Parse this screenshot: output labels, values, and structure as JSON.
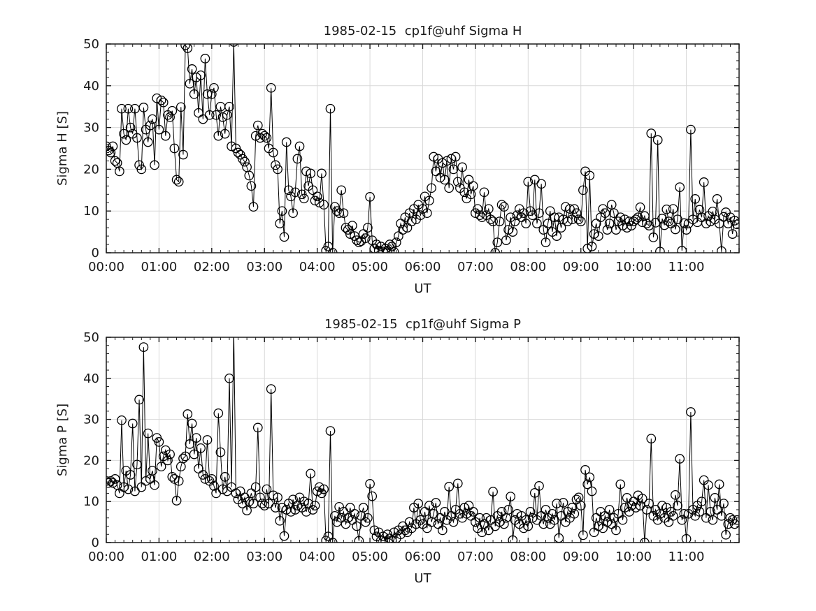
{
  "figure": {
    "background": "#ffffff",
    "text_color": "#1a1a1a",
    "axis_color": "#1a1a1a",
    "grid_color": "#d9d9d9",
    "line_color": "#000000",
    "marker_radius": 6.2,
    "tick_font_size": 18,
    "title_font_size": 18
  },
  "chart_data": [
    {
      "name": "sigma-h",
      "type": "line",
      "title": "1985-02-15  cp1f@uhf Sigma H",
      "xlabel": "UT",
      "ylabel": "Sigma H [S]",
      "ylim": [
        0,
        50
      ],
      "xlim_hours": [
        0,
        12
      ],
      "grid": true,
      "marker": "open-circle",
      "time_step_minutes": 2.5,
      "x_tick_labels": [
        "00:00",
        "01:00",
        "02:00",
        "03:00",
        "04:00",
        "05:00",
        "06:00",
        "07:00",
        "08:00",
        "09:00",
        "10:00",
        "11:00"
      ],
      "y_tick_labels": [
        "0",
        "10",
        "20",
        "30",
        "40",
        "50"
      ],
      "x_minor_step_minutes": 10,
      "y_minor_step": 2,
      "values": [
        25.5,
        24.5,
        24,
        25.5,
        22,
        21.5,
        19.5,
        34.5,
        28.5,
        27,
        34.5,
        30,
        28.5,
        34.5,
        27.5,
        21,
        20,
        34.8,
        29.5,
        26.5,
        30.5,
        32,
        21,
        37,
        29.5,
        36.5,
        36,
        28,
        33,
        32.5,
        34,
        25,
        17.5,
        17,
        34.9,
        23.5,
        49.7,
        49,
        40.5,
        44,
        38,
        42,
        33.5,
        42.5,
        32,
        46.5,
        38,
        33,
        38,
        39.5,
        33,
        28,
        35,
        32.5,
        28.5,
        33,
        35,
        25.5,
        50.5,
        25,
        24,
        23.5,
        22.5,
        21.8,
        20.5,
        18.5,
        16,
        11,
        28,
        30.5,
        27.5,
        28.5,
        28,
        27.5,
        25,
        39.5,
        24,
        21,
        20,
        7,
        10,
        3.8,
        26.5,
        15,
        13.5,
        9.5,
        14.5,
        22.5,
        25.5,
        14,
        13,
        19.5,
        16,
        19,
        15,
        12.5,
        13.5,
        12,
        19,
        11.5,
        0.5,
        1.5,
        34.5,
        0,
        11,
        10,
        9.5,
        15,
        9.5,
        6,
        5.5,
        4.5,
        6.5,
        4,
        3,
        2.5,
        2.8,
        4.5,
        3.5,
        6,
        13.4,
        3,
        1,
        2,
        0.5,
        1.5,
        0.3,
        1,
        0.5,
        2,
        1.5,
        0.2,
        2.5,
        4,
        7,
        5.5,
        8.5,
        6,
        9.5,
        7.5,
        10.5,
        8,
        11.5,
        9,
        10.5,
        13.5,
        9.5,
        12.5,
        15.5,
        23,
        19.5,
        22.5,
        18,
        21.5,
        17.5,
        22,
        15.5,
        22.5,
        20,
        23,
        17,
        15.5,
        20.5,
        14.5,
        13,
        17.5,
        14,
        16,
        9.5,
        10.5,
        9,
        8.5,
        14.5,
        9,
        10.5,
        8,
        7.5,
        0,
        2.5,
        7.5,
        11.5,
        11,
        3,
        5.5,
        8.5,
        5,
        7.5,
        9,
        10.5,
        8.5,
        9.5,
        7,
        17,
        10,
        9,
        17.5,
        7,
        9.5,
        16.5,
        5.5,
        2.5,
        7,
        10,
        5,
        8.5,
        4,
        8.5,
        6,
        8,
        11,
        7.5,
        10.5,
        8,
        10.5,
        9.5,
        8,
        7.5,
        15,
        19.5,
        1,
        18.5,
        1.5,
        4.5,
        7,
        4,
        8.5,
        10.5,
        9.5,
        5.5,
        7,
        11.5,
        9.5,
        5.5,
        7.5,
        8.5,
        6.5,
        8,
        6,
        7.5,
        6.5,
        7.5,
        8,
        8.5,
        10.9,
        7.3,
        8.8,
        7,
        6.5,
        28.6,
        3.7,
        7.2,
        27,
        0.3,
        8.2,
        6.6,
        10.4,
        7.5,
        7,
        10.5,
        5.6,
        8,
        15.7,
        0.5,
        7.1,
        5.5,
        7,
        29.5,
        8,
        12.9,
        7.3,
        10.3,
        8.5,
        16.9,
        7,
        8.8,
        7.5,
        9.9,
        8,
        12.9,
        7,
        0.4,
        8.6,
        9.7,
        7,
        8.5,
        4.5,
        7.7,
        6.8
      ]
    },
    {
      "name": "sigma-p",
      "type": "line",
      "title": "1985-02-15  cp1f@uhf Sigma P",
      "xlabel": "UT",
      "ylabel": "Sigma P [S]",
      "ylim": [
        0,
        50
      ],
      "xlim_hours": [
        0,
        12
      ],
      "grid": true,
      "marker": "open-circle",
      "time_step_minutes": 2.5,
      "x_tick_labels": [
        "00:00",
        "01:00",
        "02:00",
        "03:00",
        "04:00",
        "05:00",
        "06:00",
        "07:00",
        "08:00",
        "09:00",
        "10:00",
        "11:00"
      ],
      "y_tick_labels": [
        "0",
        "10",
        "20",
        "30",
        "40",
        "50"
      ],
      "x_minor_step_minutes": 10,
      "y_minor_step": 2,
      "values": [
        15,
        14.5,
        15,
        14.5,
        15.5,
        14,
        12,
        29.8,
        13.5,
        17.5,
        13,
        16.5,
        29,
        12.5,
        19,
        34.8,
        13.5,
        47.6,
        15,
        26.6,
        15.5,
        17.5,
        14,
        25.5,
        24.5,
        18.5,
        21,
        22.5,
        20,
        21.5,
        16,
        15.5,
        10.2,
        15,
        18.5,
        20.5,
        21,
        31.3,
        24,
        29,
        21.5,
        25.5,
        18,
        23,
        16.5,
        15.5,
        25,
        15,
        15.5,
        13.8,
        12,
        31.5,
        22,
        13,
        16,
        12.5,
        40,
        13.5,
        52,
        12,
        10.5,
        12.5,
        9.5,
        11,
        7.8,
        10,
        12,
        9.5,
        13.5,
        28,
        11,
        9.5,
        9,
        13,
        9.5,
        37.4,
        11.5,
        8.5,
        11,
        5.3,
        8.5,
        1.6,
        8,
        9.5,
        7.5,
        10.5,
        8,
        9,
        11,
        8.5,
        10,
        7.5,
        9.5,
        16.8,
        8,
        9,
        12.5,
        13.5,
        12,
        13,
        0.5,
        1.5,
        27.2,
        0,
        6.5,
        5,
        8.7,
        6,
        7.5,
        4.5,
        6,
        8.5,
        5.5,
        7,
        4,
        0.4,
        6.5,
        8.5,
        5,
        6,
        14.3,
        11.3,
        3,
        1.5,
        2.5,
        0.5,
        1.5,
        0.3,
        2,
        1,
        0.5,
        2.5,
        1,
        3,
        2,
        4,
        3,
        2.5,
        5,
        3.5,
        8.5,
        4.5,
        9.5,
        5.5,
        4.5,
        7.5,
        3.5,
        9,
        5,
        7,
        9.7,
        4.5,
        6,
        3,
        7.5,
        5.5,
        13.6,
        6.5,
        5,
        8,
        14.4,
        7,
        6,
        8.5,
        7,
        9,
        6.5,
        7.5,
        5,
        3.5,
        6,
        2.5,
        4.5,
        6,
        3,
        5.5,
        12.4,
        4,
        6.5,
        5,
        7.5,
        4.5,
        6,
        8,
        11.2,
        0.6,
        5.5,
        7,
        4.5,
        6.5,
        3.5,
        5.5,
        4,
        7.5,
        6,
        12.1,
        5.5,
        13.8,
        6.5,
        4.5,
        8,
        6,
        4.5,
        7,
        5.5,
        9.5,
        1.1,
        6.5,
        9.7,
        5,
        7.5,
        6,
        8.5,
        7,
        10.5,
        11,
        9,
        1.8,
        17.7,
        14.2,
        15.9,
        12.5,
        2.5,
        6,
        4,
        7.5,
        3.5,
        6.5,
        5,
        8,
        4.5,
        6,
        3,
        7,
        14.2,
        5.5,
        8.5,
        10.9,
        7.5,
        9,
        10,
        8.5,
        11.5,
        9,
        10.7,
        0,
        8,
        9.5,
        25.3,
        6.5,
        8,
        5.5,
        7,
        9,
        6,
        8.5,
        5,
        7.5,
        6.5,
        11.6,
        9,
        20.4,
        5.5,
        7,
        0.9,
        7,
        31.8,
        8,
        6.5,
        9,
        7.5,
        10,
        15.2,
        6,
        14,
        7.5,
        5.5,
        10.9,
        8,
        14.2,
        6.5,
        9.5,
        1.9,
        4.5,
        6,
        5.5,
        4.5,
        5.5
      ]
    }
  ]
}
